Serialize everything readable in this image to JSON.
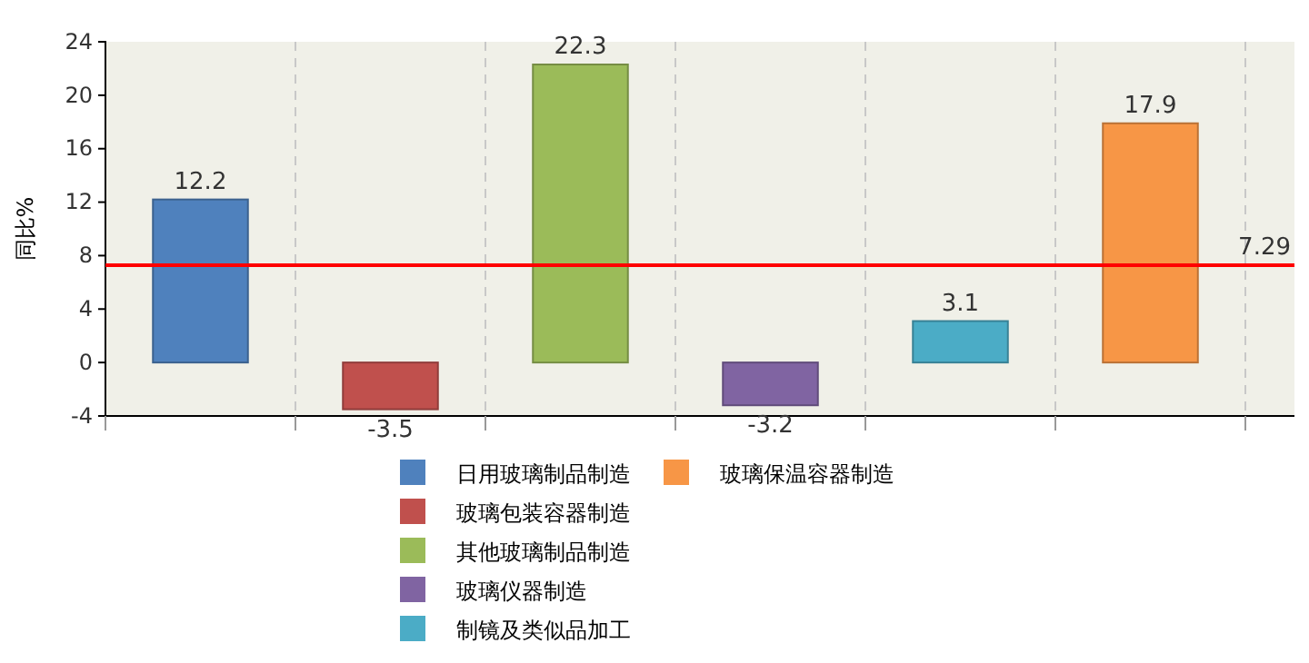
{
  "chart_data": {
    "type": "bar",
    "ylabel": "同比%",
    "categories": [
      null,
      null,
      null,
      null,
      null,
      null
    ],
    "series": [
      {
        "name": "日用玻璃制品制造",
        "color": "#4f81bd",
        "values": [
          12.2,
          null,
          null,
          null,
          null,
          null
        ]
      },
      {
        "name": "玻璃包装容器制造",
        "color": "#c0504d",
        "values": [
          null,
          -3.5,
          null,
          null,
          null,
          null
        ]
      },
      {
        "name": "其他玻璃制品制造",
        "color": "#9bbb59",
        "values": [
          null,
          null,
          22.3,
          null,
          null,
          null
        ]
      },
      {
        "name": "玻璃仪器制造",
        "color": "#8064a2",
        "values": [
          null,
          null,
          null,
          -3.2,
          null,
          null
        ]
      },
      {
        "name": "制镜及类似品加工",
        "color": "#4bacc6",
        "values": [
          null,
          null,
          null,
          null,
          3.1,
          null
        ]
      },
      {
        "name": "玻璃保温容器制造",
        "color": "#f79646",
        "values": [
          null,
          null,
          null,
          null,
          null,
          17.9
        ]
      }
    ],
    "ylim": [
      -4,
      24
    ],
    "yticks": [
      -4,
      0,
      4,
      8,
      12,
      16,
      20,
      24
    ],
    "grid": "x",
    "legend": "bottom",
    "data_labels": true,
    "ref_lines": [
      {
        "axis": "y",
        "value": 7.29,
        "label": "7.29",
        "color": "#ff0000"
      }
    ]
  }
}
